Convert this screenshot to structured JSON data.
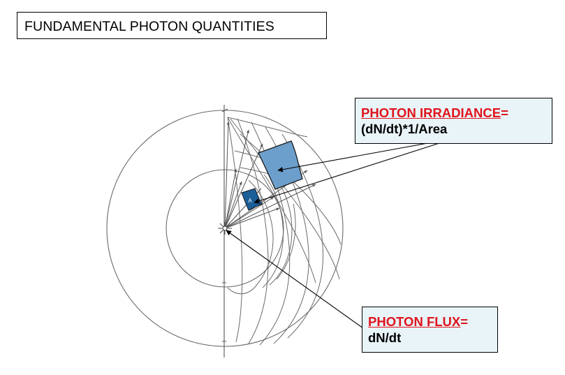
{
  "title": "FUNDAMENTAL PHOTON QUANTITIES",
  "irradiance": {
    "heading": "PHOTON IRRADIANCE",
    "equals": "=",
    "formula": "(dN/dt)*1/Area"
  },
  "flux": {
    "heading": "PHOTON FLUX",
    "equals": "=",
    "formula": "dN/dt"
  },
  "inner_patch_label": "A",
  "colors": {
    "heading_red": "#e0141c",
    "callout_bg": "#e8f4f8",
    "outer_patch": "#6d9fcc",
    "inner_patch": "#1b5e98",
    "sketch_line": "#666666"
  }
}
